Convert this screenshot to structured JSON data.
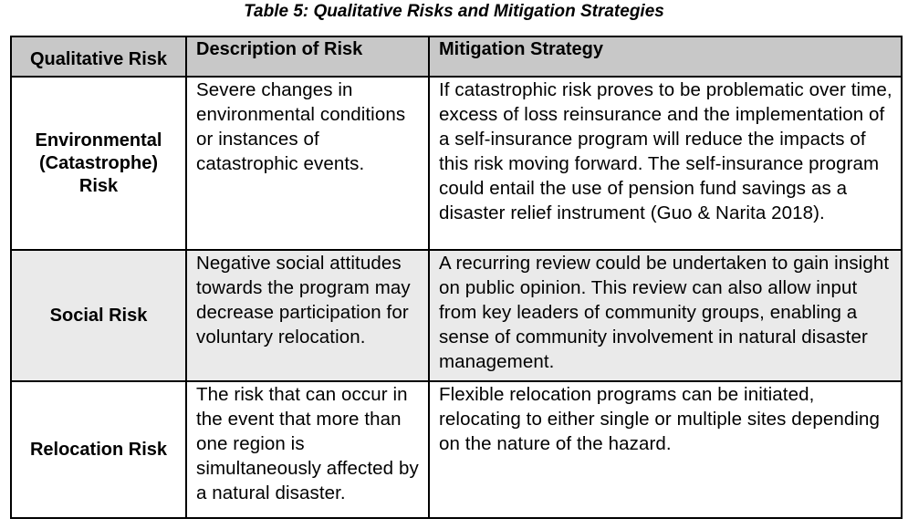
{
  "caption": "Table 5: Qualitative Risks and Mitigation Strategies",
  "headers": {
    "risk": "Qualitative Risk",
    "description": "Description of Risk",
    "mitigation": "Mitigation Strategy"
  },
  "rows": [
    {
      "risk_lines": [
        "Environmental",
        "(Catastrophe)",
        "Risk"
      ],
      "description": "Severe changes in environmental conditions or instances of catastrophic events.",
      "mitigation": "If catastrophic risk proves to be problematic over time, excess of loss reinsurance and the implementation of a self-insurance program will reduce the impacts of this risk moving forward. The self-insurance program could entail the use of pension fund savings as a disaster relief instrument (Guo & Narita 2018)."
    },
    {
      "risk_lines": [
        "Social Risk"
      ],
      "description": "Negative social attitudes towards the program may decrease participation for voluntary relocation.",
      "mitigation": "A recurring review could be undertaken to gain insight on public opinion. This review can also allow input from key leaders of community groups, enabling a sense of community involvement in natural disaster management."
    },
    {
      "risk_lines": [
        "Relocation Risk"
      ],
      "description": "The risk that can occur in the event that more than one region is simultaneously affected by a natural disaster.",
      "mitigation": "Flexible relocation programs can be initiated, relocating to either single or multiple sites depending on the nature of the hazard."
    }
  ]
}
